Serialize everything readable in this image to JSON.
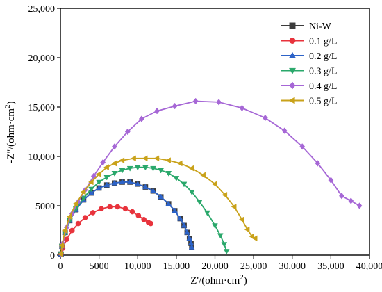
{
  "chart_data": {
    "type": "scatter",
    "xlabel": "Z'/(ohm·cm",
    "xlabel_sup": "2",
    "xlabel_end": ")",
    "ylabel": "-Z''/(ohm·cm",
    "ylabel_sup": "2",
    "ylabel_end": ")",
    "xlim": [
      0,
      40000
    ],
    "ylim": [
      0,
      25000
    ],
    "x_ticks": [
      0,
      5000,
      10000,
      15000,
      20000,
      25000,
      30000,
      35000,
      40000
    ],
    "x_tick_labels": [
      "0",
      "5000",
      "10,000",
      "15,000",
      "20,000",
      "25,000",
      "30,000",
      "35,000",
      "40,000"
    ],
    "y_ticks": [
      0,
      5000,
      10000,
      15000,
      20000,
      25000
    ],
    "y_tick_labels": [
      "0",
      "5000",
      "10,000",
      "15,000",
      "20,000",
      "25,000"
    ],
    "grid": false,
    "legend_position": "top-right",
    "series": [
      {
        "name": "Ni-W",
        "color": "#3c3c3c",
        "marker": "square",
        "points": [
          [
            80,
            100
          ],
          [
            200,
            900
          ],
          [
            600,
            2300
          ],
          [
            1200,
            3500
          ],
          [
            2000,
            4600
          ],
          [
            3000,
            5600
          ],
          [
            4000,
            6300
          ],
          [
            5000,
            6800
          ],
          [
            6000,
            7100
          ],
          [
            7000,
            7300
          ],
          [
            8000,
            7400
          ],
          [
            9000,
            7400
          ],
          [
            10000,
            7200
          ],
          [
            11000,
            6900
          ],
          [
            12000,
            6500
          ],
          [
            13000,
            5900
          ],
          [
            14000,
            5200
          ],
          [
            14800,
            4500
          ],
          [
            15500,
            3700
          ],
          [
            16000,
            3000
          ],
          [
            16400,
            2300
          ],
          [
            16700,
            1700
          ],
          [
            16900,
            1200
          ],
          [
            17000,
            800
          ]
        ]
      },
      {
        "name": "0.1 g/L",
        "color": "#e8333c",
        "marker": "circle",
        "points": [
          [
            80,
            100
          ],
          [
            300,
            700
          ],
          [
            800,
            1600
          ],
          [
            1500,
            2500
          ],
          [
            2300,
            3200
          ],
          [
            3200,
            3800
          ],
          [
            4200,
            4300
          ],
          [
            5300,
            4700
          ],
          [
            6400,
            4900
          ],
          [
            7400,
            4900
          ],
          [
            8400,
            4700
          ],
          [
            9300,
            4400
          ],
          [
            10100,
            4000
          ],
          [
            10800,
            3600
          ],
          [
            11400,
            3300
          ],
          [
            11700,
            3200
          ]
        ]
      },
      {
        "name": "0.2 g/L",
        "color": "#2d63c8",
        "marker": "triangle-up",
        "points": [
          [
            80,
            100
          ],
          [
            200,
            900
          ],
          [
            600,
            2300
          ],
          [
            1200,
            3500
          ],
          [
            2000,
            4600
          ],
          [
            3000,
            5600
          ],
          [
            4000,
            6300
          ],
          [
            5000,
            6800
          ],
          [
            6000,
            7100
          ],
          [
            7000,
            7300
          ],
          [
            8000,
            7400
          ],
          [
            9000,
            7400
          ],
          [
            10000,
            7200
          ],
          [
            11000,
            6900
          ],
          [
            12000,
            6500
          ],
          [
            13000,
            5900
          ],
          [
            14000,
            5200
          ],
          [
            14800,
            4500
          ],
          [
            15500,
            3700
          ],
          [
            16000,
            3000
          ],
          [
            16400,
            2300
          ],
          [
            16700,
            1700
          ],
          [
            16900,
            1200
          ],
          [
            17000,
            800
          ]
        ]
      },
      {
        "name": "0.3 g/L",
        "color": "#2aa86b",
        "marker": "triangle-down",
        "points": [
          [
            80,
            100
          ],
          [
            200,
            900
          ],
          [
            600,
            2200
          ],
          [
            1200,
            3500
          ],
          [
            2000,
            4700
          ],
          [
            3000,
            5800
          ],
          [
            4000,
            6700
          ],
          [
            5000,
            7400
          ],
          [
            6000,
            7900
          ],
          [
            7000,
            8300
          ],
          [
            8000,
            8600
          ],
          [
            9000,
            8800
          ],
          [
            10000,
            8900
          ],
          [
            11000,
            8900
          ],
          [
            12000,
            8800
          ],
          [
            13000,
            8600
          ],
          [
            14000,
            8300
          ],
          [
            15000,
            7800
          ],
          [
            16000,
            7200
          ],
          [
            17000,
            6400
          ],
          [
            18000,
            5400
          ],
          [
            19000,
            4300
          ],
          [
            20000,
            3000
          ],
          [
            20700,
            2000
          ],
          [
            21200,
            1100
          ],
          [
            21500,
            400
          ]
        ]
      },
      {
        "name": "0.4 g/L",
        "color": "#a667d6",
        "marker": "diamond",
        "points": [
          [
            80,
            100
          ],
          [
            300,
            1200
          ],
          [
            800,
            2800
          ],
          [
            1500,
            4200
          ],
          [
            2300,
            5400
          ],
          [
            3200,
            6600
          ],
          [
            4300,
            8000
          ],
          [
            5500,
            9400
          ],
          [
            7000,
            11000
          ],
          [
            8700,
            12500
          ],
          [
            10500,
            13800
          ],
          [
            12500,
            14600
          ],
          [
            14800,
            15100
          ],
          [
            17500,
            15600
          ],
          [
            20500,
            15500
          ],
          [
            23500,
            14900
          ],
          [
            26500,
            13900
          ],
          [
            29000,
            12600
          ],
          [
            31300,
            11000
          ],
          [
            33300,
            9300
          ],
          [
            35000,
            7600
          ],
          [
            36400,
            6000
          ],
          [
            37600,
            5500
          ],
          [
            38700,
            5000
          ]
        ]
      },
      {
        "name": "0.5 g/L",
        "color": "#c9a21a",
        "marker": "triangle-left",
        "points": [
          [
            80,
            100
          ],
          [
            200,
            1000
          ],
          [
            600,
            2500
          ],
          [
            1200,
            3900
          ],
          [
            2000,
            5200
          ],
          [
            3000,
            6400
          ],
          [
            4000,
            7400
          ],
          [
            5000,
            8200
          ],
          [
            6000,
            8900
          ],
          [
            7000,
            9300
          ],
          [
            8000,
            9600
          ],
          [
            9500,
            9800
          ],
          [
            11000,
            9800
          ],
          [
            12500,
            9800
          ],
          [
            14000,
            9600
          ],
          [
            15500,
            9300
          ],
          [
            17000,
            8800
          ],
          [
            18500,
            8100
          ],
          [
            20000,
            7200
          ],
          [
            21300,
            6100
          ],
          [
            22500,
            4900
          ],
          [
            23500,
            3600
          ],
          [
            24200,
            2600
          ],
          [
            24800,
            1900
          ],
          [
            25200,
            1700
          ]
        ]
      }
    ]
  }
}
